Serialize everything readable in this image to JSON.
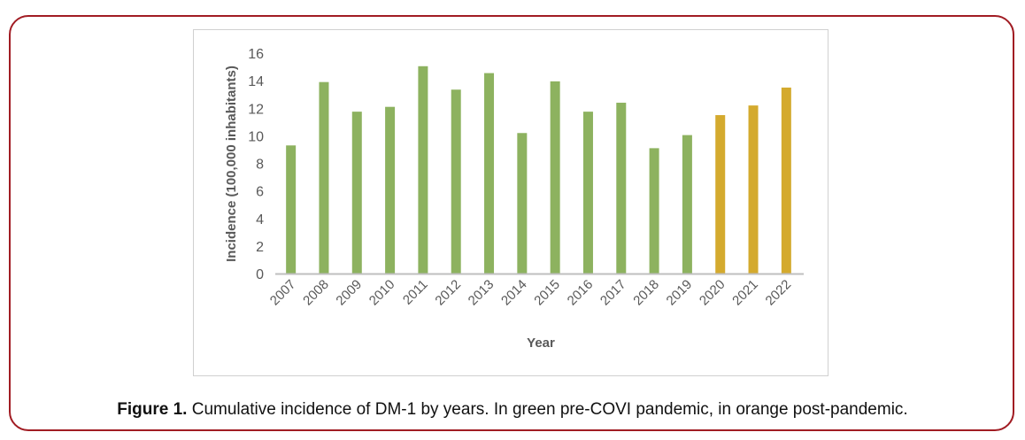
{
  "caption": {
    "label": "Figure 1.",
    "text": " Cumulative incidence of DM-1 by years. In green pre-COVI pandemic, in orange post-pandemic."
  },
  "colors": {
    "frame": "#a11c23",
    "pre": "#8db25f",
    "post": "#d4aa2e"
  },
  "chart_data": {
    "type": "bar",
    "xlabel": "Year",
    "ylabel": "Incidence (100,000 inhabitants)",
    "ylim": [
      0,
      16
    ],
    "yticks": [
      0,
      2,
      4,
      6,
      8,
      10,
      12,
      14,
      16
    ],
    "grid": false,
    "categories": [
      "2007",
      "2008",
      "2009",
      "2010",
      "2011",
      "2012",
      "2013",
      "2014",
      "2015",
      "2016",
      "2017",
      "2018",
      "2019",
      "2020",
      "2021",
      "2022"
    ],
    "values": [
      9.3,
      13.9,
      11.75,
      12.1,
      15.05,
      13.35,
      14.55,
      10.2,
      13.95,
      11.75,
      12.4,
      9.1,
      10.05,
      11.5,
      12.2,
      13.5
    ],
    "groups": [
      "pre",
      "pre",
      "pre",
      "pre",
      "pre",
      "pre",
      "pre",
      "pre",
      "pre",
      "pre",
      "pre",
      "pre",
      "pre",
      "post",
      "post",
      "post"
    ]
  }
}
